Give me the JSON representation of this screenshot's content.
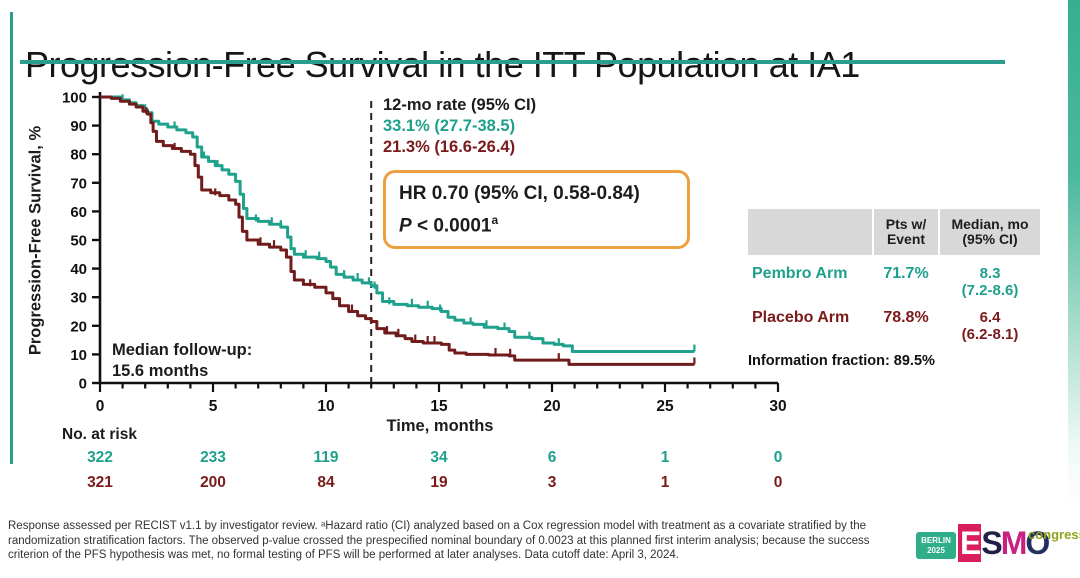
{
  "slide": {
    "title": "Progression-Free Survival in the ITT Population at IA1",
    "accent_color": "#2a9d8f"
  },
  "annotations": {
    "rate_header": "12-mo rate (95% CI)",
    "rate_pembro": "33.1% (27.7-38.5)",
    "rate_placebo": "21.3% (16.6-26.4)",
    "hr_line1": "HR 0.70 (95% CI, 0.58-0.84)",
    "p_label": "P",
    "p_value": " < 0.0001",
    "p_sup": "a",
    "followup_line1": "Median follow-up:",
    "followup_line2": "15.6 months"
  },
  "summary_table": {
    "header_col2_l1": "Pts w/",
    "header_col2_l2": "Event",
    "header_col3_l1": "Median, mo",
    "header_col3_l2": "(95% CI)",
    "rows": [
      {
        "label": "Pembro Arm",
        "pts_event": "71.7%",
        "median_l1": "8.3",
        "median_l2": "(7.2-8.6)",
        "color": "#1fa08c"
      },
      {
        "label": "Placebo Arm",
        "pts_event": "78.8%",
        "median_l1": "6.4",
        "median_l2": "(6.2-8.1)",
        "color": "#7a1a1a"
      }
    ],
    "info_fraction": "Information fraction: 89.5%"
  },
  "risk_table": {
    "label": "No. at risk",
    "months": [
      0,
      5,
      10,
      15,
      20,
      25,
      30
    ],
    "rows": [
      {
        "name": "pembro",
        "color": "#1fa08c",
        "values": [
          322,
          233,
          119,
          34,
          6,
          1,
          0
        ]
      },
      {
        "name": "placebo",
        "color": "#7a1a1a",
        "values": [
          321,
          200,
          84,
          19,
          3,
          1,
          0
        ]
      }
    ]
  },
  "footnote": "Response assessed per RECIST v1.1 by investigator review. ᵃHazard ratio (CI) analyzed based on a Cox regression model with treatment as a covariate stratified by the randomization stratification factors. The observed p-value crossed the prespecified nominal boundary of 0.0023 at this planned first interim analysis; because the success criterion of the PFS hypothesis was met, no formal testing of PFS will be performed at later analyses. Data cutoff date: April 3, 2024.",
  "logo": {
    "badge_line1": "BERLIN",
    "badge_line2": "2025",
    "letter_e": "E",
    "letter_s": "S",
    "letter_m": "M",
    "letter_o": "O",
    "congress": "congress"
  },
  "chart_data": {
    "type": "line",
    "subtype": "kaplan-meier-step",
    "title": "Progression-Free Survival in the ITT Population at IA1",
    "xlabel": "Time, months",
    "ylabel": "Progression-Free Survival, %",
    "xlim": [
      0,
      30
    ],
    "ylim": [
      0,
      100
    ],
    "x_major_ticks": [
      0,
      5,
      10,
      15,
      20,
      25,
      30
    ],
    "x_minor_step": 1,
    "y_ticks": [
      0,
      10,
      20,
      30,
      40,
      50,
      60,
      70,
      80,
      90,
      100
    ],
    "reference_line_x": 12,
    "grid": false,
    "series": [
      {
        "name": "Pembro Arm",
        "color": "#1fa18c",
        "rate_12mo": "33.1% (27.7-38.5)",
        "median_months": "8.3 (7.2-8.6)",
        "points": [
          [
            0,
            100
          ],
          [
            0.5,
            100
          ],
          [
            0.9,
            99
          ],
          [
            1.3,
            98
          ],
          [
            1.6,
            97
          ],
          [
            1.9,
            95.5
          ],
          [
            2.1,
            94.5
          ],
          [
            2.3,
            91.5
          ],
          [
            2.6,
            90.5
          ],
          [
            3.0,
            89.5
          ],
          [
            3.4,
            88.5
          ],
          [
            3.8,
            87.5
          ],
          [
            4.1,
            86
          ],
          [
            4.3,
            82.5
          ],
          [
            4.5,
            79
          ],
          [
            4.8,
            77.5
          ],
          [
            5.1,
            76
          ],
          [
            5.4,
            74.5
          ],
          [
            5.7,
            73
          ],
          [
            6.0,
            70.5
          ],
          [
            6.2,
            66
          ],
          [
            6.35,
            61
          ],
          [
            6.5,
            57.5
          ],
          [
            7.0,
            56.5
          ],
          [
            7.5,
            55.5
          ],
          [
            8.0,
            54.5
          ],
          [
            8.3,
            51
          ],
          [
            8.45,
            47
          ],
          [
            8.6,
            45
          ],
          [
            9.0,
            44
          ],
          [
            9.6,
            43.5
          ],
          [
            10.0,
            42.5
          ],
          [
            10.2,
            40.5
          ],
          [
            10.45,
            38
          ],
          [
            10.8,
            37
          ],
          [
            11.2,
            36
          ],
          [
            11.6,
            35
          ],
          [
            12.0,
            34
          ],
          [
            12.25,
            31.5
          ],
          [
            12.5,
            28.5
          ],
          [
            13.0,
            27.5
          ],
          [
            13.6,
            27
          ],
          [
            14.1,
            26.5
          ],
          [
            14.7,
            26
          ],
          [
            15.1,
            25
          ],
          [
            15.4,
            23
          ],
          [
            15.7,
            22
          ],
          [
            16.1,
            21
          ],
          [
            16.5,
            20.5
          ],
          [
            17.0,
            19.5
          ],
          [
            17.6,
            19
          ],
          [
            18.1,
            18
          ],
          [
            18.35,
            16
          ],
          [
            19.1,
            15.5
          ],
          [
            19.6,
            14
          ],
          [
            20.1,
            13.5
          ],
          [
            20.5,
            13
          ],
          [
            20.9,
            11
          ],
          [
            26.3,
            11
          ]
        ],
        "censor_ticks": [
          [
            1.0,
            98.5
          ],
          [
            2.0,
            95
          ],
          [
            3.3,
            89
          ],
          [
            4.6,
            78.5
          ],
          [
            5.2,
            75.5
          ],
          [
            6.9,
            56.5
          ],
          [
            7.6,
            55.5
          ],
          [
            8.0,
            54.5
          ],
          [
            9.1,
            44
          ],
          [
            9.7,
            43.5
          ],
          [
            10.8,
            37
          ],
          [
            11.4,
            36
          ],
          [
            11.9,
            34.5
          ],
          [
            12.15,
            33
          ],
          [
            12.8,
            27.5
          ],
          [
            13.8,
            27
          ],
          [
            14.5,
            26.3
          ],
          [
            15.05,
            25
          ],
          [
            16.4,
            20.5
          ],
          [
            17.1,
            19.5
          ],
          [
            17.9,
            18.7
          ],
          [
            19.0,
            15.5
          ],
          [
            20.3,
            13.2
          ],
          [
            26.3,
            11
          ]
        ]
      },
      {
        "name": "Placebo Arm",
        "color": "#701c1c",
        "rate_12mo": "21.3% (16.6-26.4)",
        "median_months": "6.4 (6.2-8.1)",
        "points": [
          [
            0,
            100
          ],
          [
            0.5,
            99.5
          ],
          [
            0.9,
            98.5
          ],
          [
            1.3,
            97.5
          ],
          [
            1.6,
            96.5
          ],
          [
            1.9,
            95
          ],
          [
            2.1,
            94
          ],
          [
            2.25,
            91
          ],
          [
            2.35,
            88
          ],
          [
            2.5,
            84.5
          ],
          [
            2.8,
            83
          ],
          [
            3.2,
            82
          ],
          [
            3.6,
            81
          ],
          [
            4.0,
            80
          ],
          [
            4.2,
            76
          ],
          [
            4.35,
            72
          ],
          [
            4.5,
            67.5
          ],
          [
            4.9,
            66.5
          ],
          [
            5.3,
            65.5
          ],
          [
            5.7,
            64
          ],
          [
            6.0,
            62.5
          ],
          [
            6.15,
            58
          ],
          [
            6.3,
            53
          ],
          [
            6.5,
            50
          ],
          [
            7.0,
            48.5
          ],
          [
            7.5,
            47.5
          ],
          [
            8.0,
            46.5
          ],
          [
            8.25,
            44
          ],
          [
            8.45,
            39
          ],
          [
            8.6,
            36
          ],
          [
            9.0,
            34.5
          ],
          [
            9.5,
            33.5
          ],
          [
            10.0,
            31.5
          ],
          [
            10.3,
            29.5
          ],
          [
            10.6,
            27
          ],
          [
            11.0,
            25
          ],
          [
            11.4,
            23.5
          ],
          [
            11.75,
            22.5
          ],
          [
            12.0,
            21.5
          ],
          [
            12.25,
            19
          ],
          [
            12.6,
            17.5
          ],
          [
            13.1,
            16.5
          ],
          [
            13.5,
            15.5
          ],
          [
            13.8,
            14.5
          ],
          [
            14.3,
            14
          ],
          [
            15.1,
            13.5
          ],
          [
            15.45,
            11.5
          ],
          [
            15.7,
            10.5
          ],
          [
            16.2,
            10
          ],
          [
            17.2,
            9.8
          ],
          [
            18.1,
            9.5
          ],
          [
            18.35,
            8
          ],
          [
            20.5,
            8
          ],
          [
            20.75,
            6.5
          ],
          [
            26.3,
            6.5
          ]
        ],
        "censor_ticks": [
          [
            2.05,
            94
          ],
          [
            3.3,
            81.5
          ],
          [
            5.1,
            65.6
          ],
          [
            7.1,
            48.5
          ],
          [
            7.7,
            47.5
          ],
          [
            9.3,
            33.8
          ],
          [
            11.15,
            25
          ],
          [
            12.7,
            17.5
          ],
          [
            13.2,
            16.5
          ],
          [
            13.95,
            14.5
          ],
          [
            14.5,
            14
          ],
          [
            14.8,
            14
          ],
          [
            17.5,
            9.8
          ],
          [
            18.15,
            9.5
          ],
          [
            20.3,
            8
          ],
          [
            26.3,
            6.5
          ]
        ]
      }
    ]
  }
}
